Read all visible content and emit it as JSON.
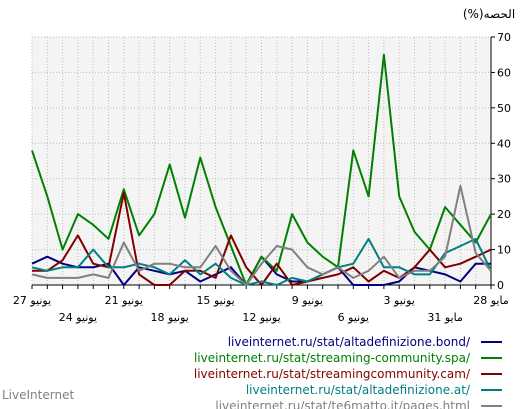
{
  "chart_data": {
    "type": "line",
    "ylabel": "(%)الحصه",
    "ylim": [
      0,
      70
    ],
    "yticks": [
      0,
      10,
      20,
      30,
      40,
      50,
      60,
      70
    ],
    "grid": true,
    "x_direction": "right-to-left",
    "x": [
      "28 مايو",
      "29 مايو",
      "30 مايو",
      "31 مايو",
      "1 يونيو",
      "2 يونيو",
      "3 يونيو",
      "4 يونيو",
      "5 يونيو",
      "6 يونيو",
      "7 يونيو",
      "8 يونيو",
      "9 يونيو",
      "10 يونيو",
      "11 يونيو",
      "12 يونيو",
      "13 يونيو",
      "14 يونيو",
      "15 يونيو",
      "16 يونيو",
      "17 يونيو",
      "18 يونيو",
      "19 يونيو",
      "20 يونيو",
      "21 يونيو",
      "22 يونيو",
      "23 يونيو",
      "24 يونيو",
      "25 يونيو",
      "26 يونيو",
      "27 يونيو"
    ],
    "tick_labels_row1": [
      {
        "index": 0,
        "label": "28 مايو"
      },
      {
        "index": 6,
        "label": "3 يونيو"
      },
      {
        "index": 12,
        "label": "9 يونيو"
      },
      {
        "index": 18,
        "label": "15 يونيو"
      },
      {
        "index": 24,
        "label": "21 يونيو"
      },
      {
        "index": 30,
        "label": "27 يونيو"
      }
    ],
    "tick_labels_row2": [
      {
        "index": 3,
        "label": "31 مايو"
      },
      {
        "index": 9,
        "label": "6 يونيو"
      },
      {
        "index": 15,
        "label": "12 يونيو"
      },
      {
        "index": 21,
        "label": "18 يونيو"
      },
      {
        "index": 27,
        "label": "24 يونيو"
      }
    ],
    "legend_position": "bottom-right",
    "series": [
      {
        "name": "liveinternet.ru/stat/altadefinizione.bond/",
        "color": "#000080",
        "values": [
          6,
          6,
          1,
          3,
          4,
          5,
          1,
          0,
          0,
          0,
          5,
          3,
          1,
          1,
          3,
          8,
          0,
          5,
          3,
          1,
          4,
          3,
          4,
          5,
          0,
          6,
          5,
          5,
          6,
          8,
          6
        ]
      },
      {
        "name": "liveinternet.ru/stat/streaming-community.spa/",
        "color": "#008000",
        "values": [
          20,
          12,
          17,
          22,
          10,
          15,
          25,
          65,
          25,
          38,
          5,
          8,
          12,
          20,
          4,
          8,
          0,
          11,
          22,
          36,
          19,
          34,
          20,
          14,
          27,
          13,
          17,
          20,
          10,
          25,
          38
        ]
      },
      {
        "name": "liveinternet.ru/stat/streamingcommunity.cam/",
        "color": "#800000",
        "values": [
          10,
          8,
          6,
          5,
          10,
          5,
          2,
          4,
          1,
          5,
          3,
          2,
          1,
          0,
          6,
          0,
          5,
          14,
          2,
          4,
          4,
          0,
          0,
          3,
          26,
          5,
          6,
          14,
          7,
          4,
          4
        ]
      },
      {
        "name": "liveinternet.ru/stat/altadefinizione.at/",
        "color": "#008080",
        "values": [
          4,
          13,
          11,
          9,
          3,
          3,
          5,
          5,
          13,
          6,
          5,
          3,
          1,
          2,
          0,
          1,
          0,
          2,
          6,
          3,
          7,
          3,
          5,
          6,
          5,
          5,
          10,
          5,
          5,
          4,
          5
        ]
      },
      {
        "name": "liveinternet.ru/stat/te6matto.it/pages.html",
        "color": "#808080",
        "values": [
          4,
          9,
          28,
          8,
          4,
          4,
          2,
          8,
          4,
          2,
          5,
          3,
          5,
          10,
          11,
          6,
          0,
          4,
          11,
          5,
          5,
          6,
          6,
          4,
          12,
          2,
          3,
          2,
          2,
          2,
          3
        ]
      }
    ]
  },
  "footer": {
    "brand": "LiveInternet"
  }
}
